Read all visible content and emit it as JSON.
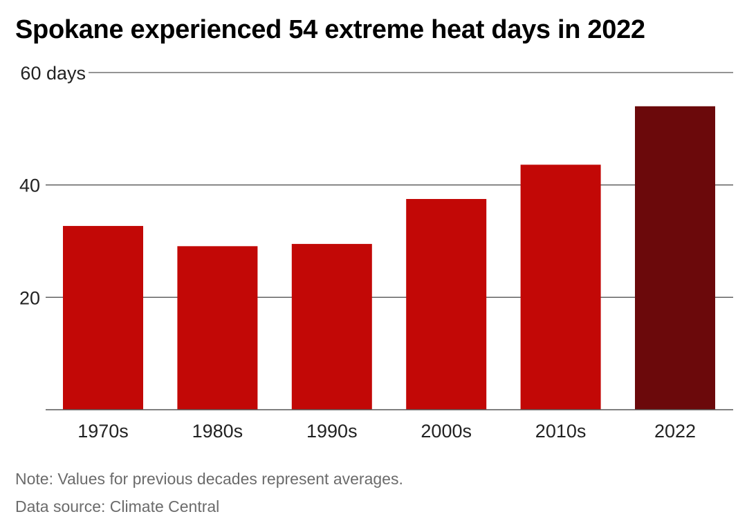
{
  "title": "Spokane experienced 54 extreme heat days in 2022",
  "footer": {
    "note": "Note: Values for previous decades represent averages.",
    "source": "Data source: Climate Central"
  },
  "colors": {
    "bar": "#c20806",
    "highlight": "#6b090b",
    "grid": "#555555",
    "text": "#222222"
  },
  "chart_data": {
    "type": "bar",
    "categories": [
      "1970s",
      "1980s",
      "1990s",
      "2000s",
      "2010s",
      "2022"
    ],
    "values": [
      32.7,
      29.1,
      29.5,
      37.5,
      43.6,
      54
    ],
    "highlight_index": 5,
    "ylim": [
      0,
      60
    ],
    "yticks": [
      20,
      40,
      60
    ],
    "ytick_labels": [
      "20",
      "40",
      "60 days"
    ],
    "grid": true,
    "legend": "none"
  }
}
